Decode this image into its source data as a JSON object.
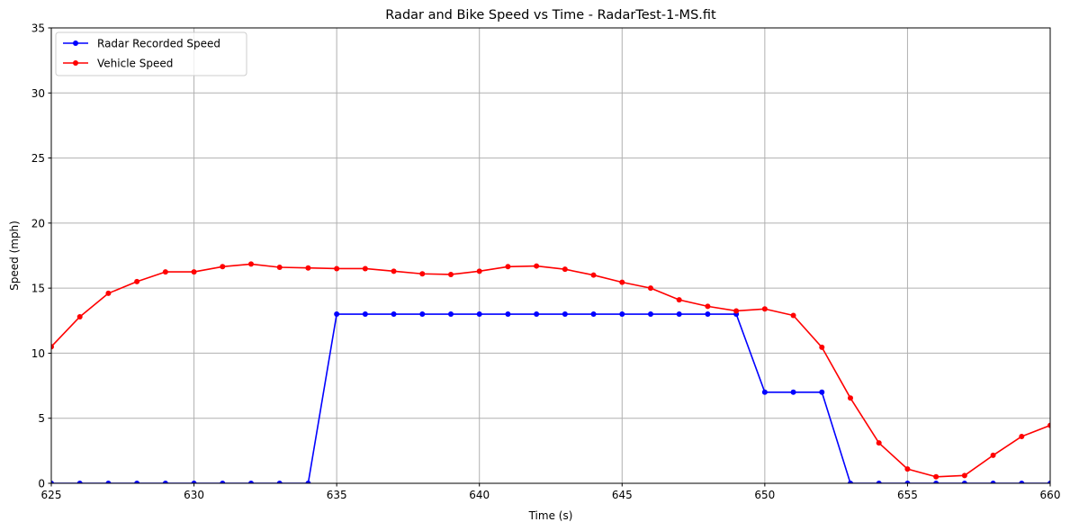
{
  "chart_data": {
    "type": "line",
    "title": "Radar and Bike Speed vs Time - RadarTest-1-MS.fit",
    "xlabel": "Time (s)",
    "ylabel": "Speed (mph)",
    "xlim": [
      625,
      660
    ],
    "ylim": [
      0,
      35
    ],
    "xticks": [
      "625",
      "630",
      "635",
      "640",
      "645",
      "650",
      "655",
      "660"
    ],
    "yticks": [
      "0",
      "5",
      "10",
      "15",
      "20",
      "25",
      "30",
      "35"
    ],
    "grid": true,
    "legend_position": "top-left",
    "x": [
      625,
      626,
      627,
      628,
      629,
      630,
      631,
      632,
      633,
      634,
      635,
      636,
      637,
      638,
      639,
      640,
      641,
      642,
      643,
      644,
      645,
      646,
      647,
      648,
      649,
      650,
      651,
      652,
      653,
      654,
      655,
      656,
      657,
      658,
      659,
      660
    ],
    "series": [
      {
        "name": "Radar Recorded Speed",
        "color": "#0000ff",
        "values": [
          0,
          0,
          0,
          0,
          0,
          0,
          0,
          0,
          0,
          0,
          13,
          13,
          13,
          13,
          13,
          13,
          13,
          13,
          13,
          13,
          13,
          13,
          13,
          13,
          13,
          7,
          7,
          7,
          0,
          0,
          0,
          0,
          0,
          0,
          0,
          0
        ]
      },
      {
        "name": "Vehicle Speed",
        "color": "#ff0000",
        "values": [
          10.5,
          12.8,
          14.6,
          15.5,
          16.25,
          16.25,
          16.65,
          16.85,
          16.6,
          16.55,
          16.5,
          16.5,
          16.3,
          16.1,
          16.05,
          16.3,
          16.65,
          16.7,
          16.45,
          16.0,
          15.45,
          15.0,
          14.1,
          13.6,
          13.25,
          13.4,
          12.9,
          10.45,
          6.55,
          3.1,
          1.1,
          0.5,
          0.6,
          2.15,
          3.6,
          4.45
        ]
      }
    ]
  }
}
